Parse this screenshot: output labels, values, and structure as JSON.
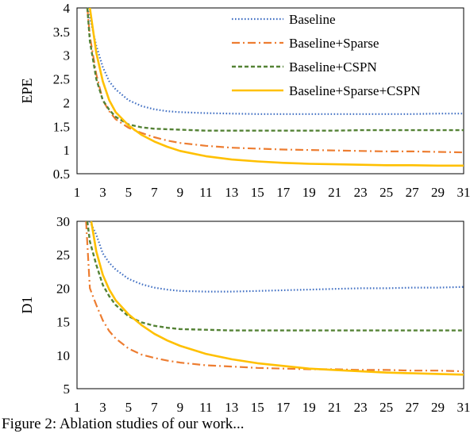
{
  "chart_data": [
    {
      "type": "line",
      "ylabel": "EPE",
      "xlabel": "",
      "ylim": [
        0.5,
        4
      ],
      "yticks": [
        "0.5",
        "1",
        "1.5",
        "2",
        "2.5",
        "3",
        "3.5",
        "4"
      ],
      "xticks": [
        "1",
        "3",
        "5",
        "7",
        "9",
        "11",
        "13",
        "15",
        "17",
        "19",
        "21",
        "23",
        "25",
        "27",
        "29",
        "31"
      ],
      "xlim": [
        1,
        31
      ],
      "legend_position": "top-right",
      "series": [
        {
          "name": "Baseline",
          "color": "#4472C4",
          "dash": "dotted",
          "x": [
            1.8,
            2,
            2.5,
            3,
            3.5,
            4,
            5,
            6,
            7,
            8,
            9,
            11,
            13,
            15,
            17,
            19,
            21,
            23,
            25,
            27,
            29,
            31
          ],
          "values": [
            4.0,
            3.8,
            3.2,
            2.75,
            2.45,
            2.28,
            2.05,
            1.93,
            1.86,
            1.82,
            1.8,
            1.78,
            1.77,
            1.76,
            1.76,
            1.76,
            1.76,
            1.76,
            1.76,
            1.76,
            1.77,
            1.77
          ]
        },
        {
          "name": "Baseline+Sparse",
          "color": "#ED7D31",
          "dash": "dashdot",
          "x": [
            1.8,
            2,
            2.5,
            3,
            3.5,
            4,
            5,
            6,
            7,
            8,
            9,
            11,
            13,
            15,
            17,
            19,
            21,
            23,
            25,
            27,
            29,
            31
          ],
          "values": [
            4.0,
            3.4,
            2.6,
            2.05,
            1.82,
            1.65,
            1.47,
            1.36,
            1.27,
            1.2,
            1.15,
            1.09,
            1.05,
            1.03,
            1.01,
            1.0,
            0.99,
            0.98,
            0.97,
            0.97,
            0.96,
            0.95
          ]
        },
        {
          "name": "Baseline+CSPN",
          "color": "#548235",
          "dash": "dashed",
          "x": [
            1.8,
            2,
            2.5,
            3,
            3.5,
            4,
            5,
            6,
            7,
            8,
            9,
            11,
            13,
            15,
            17,
            19,
            21,
            23,
            25,
            27,
            29,
            31
          ],
          "values": [
            4.0,
            3.3,
            2.5,
            2.05,
            1.85,
            1.7,
            1.54,
            1.48,
            1.45,
            1.44,
            1.43,
            1.41,
            1.41,
            1.41,
            1.41,
            1.41,
            1.41,
            1.42,
            1.42,
            1.42,
            1.42,
            1.42
          ]
        },
        {
          "name": "Baseline+Sparse+CSPN",
          "color": "#FFC000",
          "dash": "solid",
          "x": [
            2,
            2.5,
            3,
            3.5,
            4,
            5,
            6,
            7,
            8,
            9,
            11,
            13,
            15,
            17,
            19,
            21,
            23,
            25,
            27,
            29,
            31
          ],
          "values": [
            4.0,
            3.05,
            2.45,
            2.05,
            1.8,
            1.52,
            1.32,
            1.18,
            1.07,
            0.98,
            0.87,
            0.8,
            0.76,
            0.73,
            0.71,
            0.7,
            0.69,
            0.68,
            0.68,
            0.67,
            0.67
          ]
        }
      ]
    },
    {
      "type": "line",
      "ylabel": "D1",
      "xlabel": "",
      "ylim": [
        5,
        30
      ],
      "yticks": [
        "5",
        "10",
        "15",
        "20",
        "25",
        "30"
      ],
      "xticks": [
        "1",
        "3",
        "5",
        "7",
        "9",
        "11",
        "13",
        "15",
        "17",
        "19",
        "21",
        "23",
        "25",
        "27",
        "29",
        "31"
      ],
      "xlim": [
        1,
        31
      ],
      "series": [
        {
          "name": "Baseline",
          "color": "#4472C4",
          "dash": "dotted",
          "x": [
            2,
            2.5,
            3,
            3.5,
            4,
            5,
            6,
            7,
            8,
            9,
            11,
            13,
            15,
            17,
            19,
            21,
            23,
            25,
            27,
            29,
            31
          ],
          "values": [
            30,
            28,
            25.2,
            23.8,
            22.8,
            21.4,
            20.6,
            20.1,
            19.8,
            19.6,
            19.5,
            19.5,
            19.6,
            19.7,
            19.8,
            19.9,
            20.0,
            20.0,
            20.1,
            20.1,
            20.2
          ]
        },
        {
          "name": "Baseline+Sparse",
          "color": "#ED7D31",
          "dash": "dashdot",
          "x": [
            1.7,
            2,
            2.5,
            3,
            3.5,
            4,
            5,
            6,
            7,
            8,
            9,
            11,
            13,
            15,
            17,
            19,
            21,
            23,
            25,
            27,
            29,
            31
          ],
          "values": [
            30,
            20,
            17.5,
            15.2,
            13.6,
            12.5,
            11.0,
            10.1,
            9.6,
            9.2,
            8.9,
            8.5,
            8.3,
            8.1,
            8.0,
            7.9,
            7.9,
            7.8,
            7.8,
            7.7,
            7.7,
            7.6
          ]
        },
        {
          "name": "Baseline+CSPN",
          "color": "#548235",
          "dash": "dashed",
          "x": [
            1.8,
            2,
            2.5,
            3,
            3.5,
            4,
            5,
            6,
            7,
            8,
            9,
            11,
            13,
            15,
            17,
            19,
            21,
            23,
            25,
            27,
            29,
            31
          ],
          "values": [
            30,
            27,
            23.5,
            20.5,
            18.8,
            17.5,
            15.8,
            14.9,
            14.4,
            14.1,
            13.9,
            13.8,
            13.7,
            13.7,
            13.7,
            13.7,
            13.7,
            13.7,
            13.7,
            13.7,
            13.7,
            13.7
          ]
        },
        {
          "name": "Baseline+Sparse+CSPN",
          "color": "#FFC000",
          "dash": "solid",
          "x": [
            2.1,
            2.5,
            3,
            3.5,
            4,
            5,
            6,
            7,
            8,
            9,
            11,
            13,
            15,
            17,
            19,
            21,
            23,
            25,
            27,
            29,
            31
          ],
          "values": [
            30,
            25.5,
            22,
            19.8,
            18.2,
            16.1,
            14.5,
            13.2,
            12.2,
            11.4,
            10.2,
            9.4,
            8.8,
            8.4,
            8.0,
            7.8,
            7.6,
            7.4,
            7.3,
            7.2,
            7.1
          ]
        }
      ]
    }
  ],
  "caption": "Figure 2: Ablation studies of our work..."
}
